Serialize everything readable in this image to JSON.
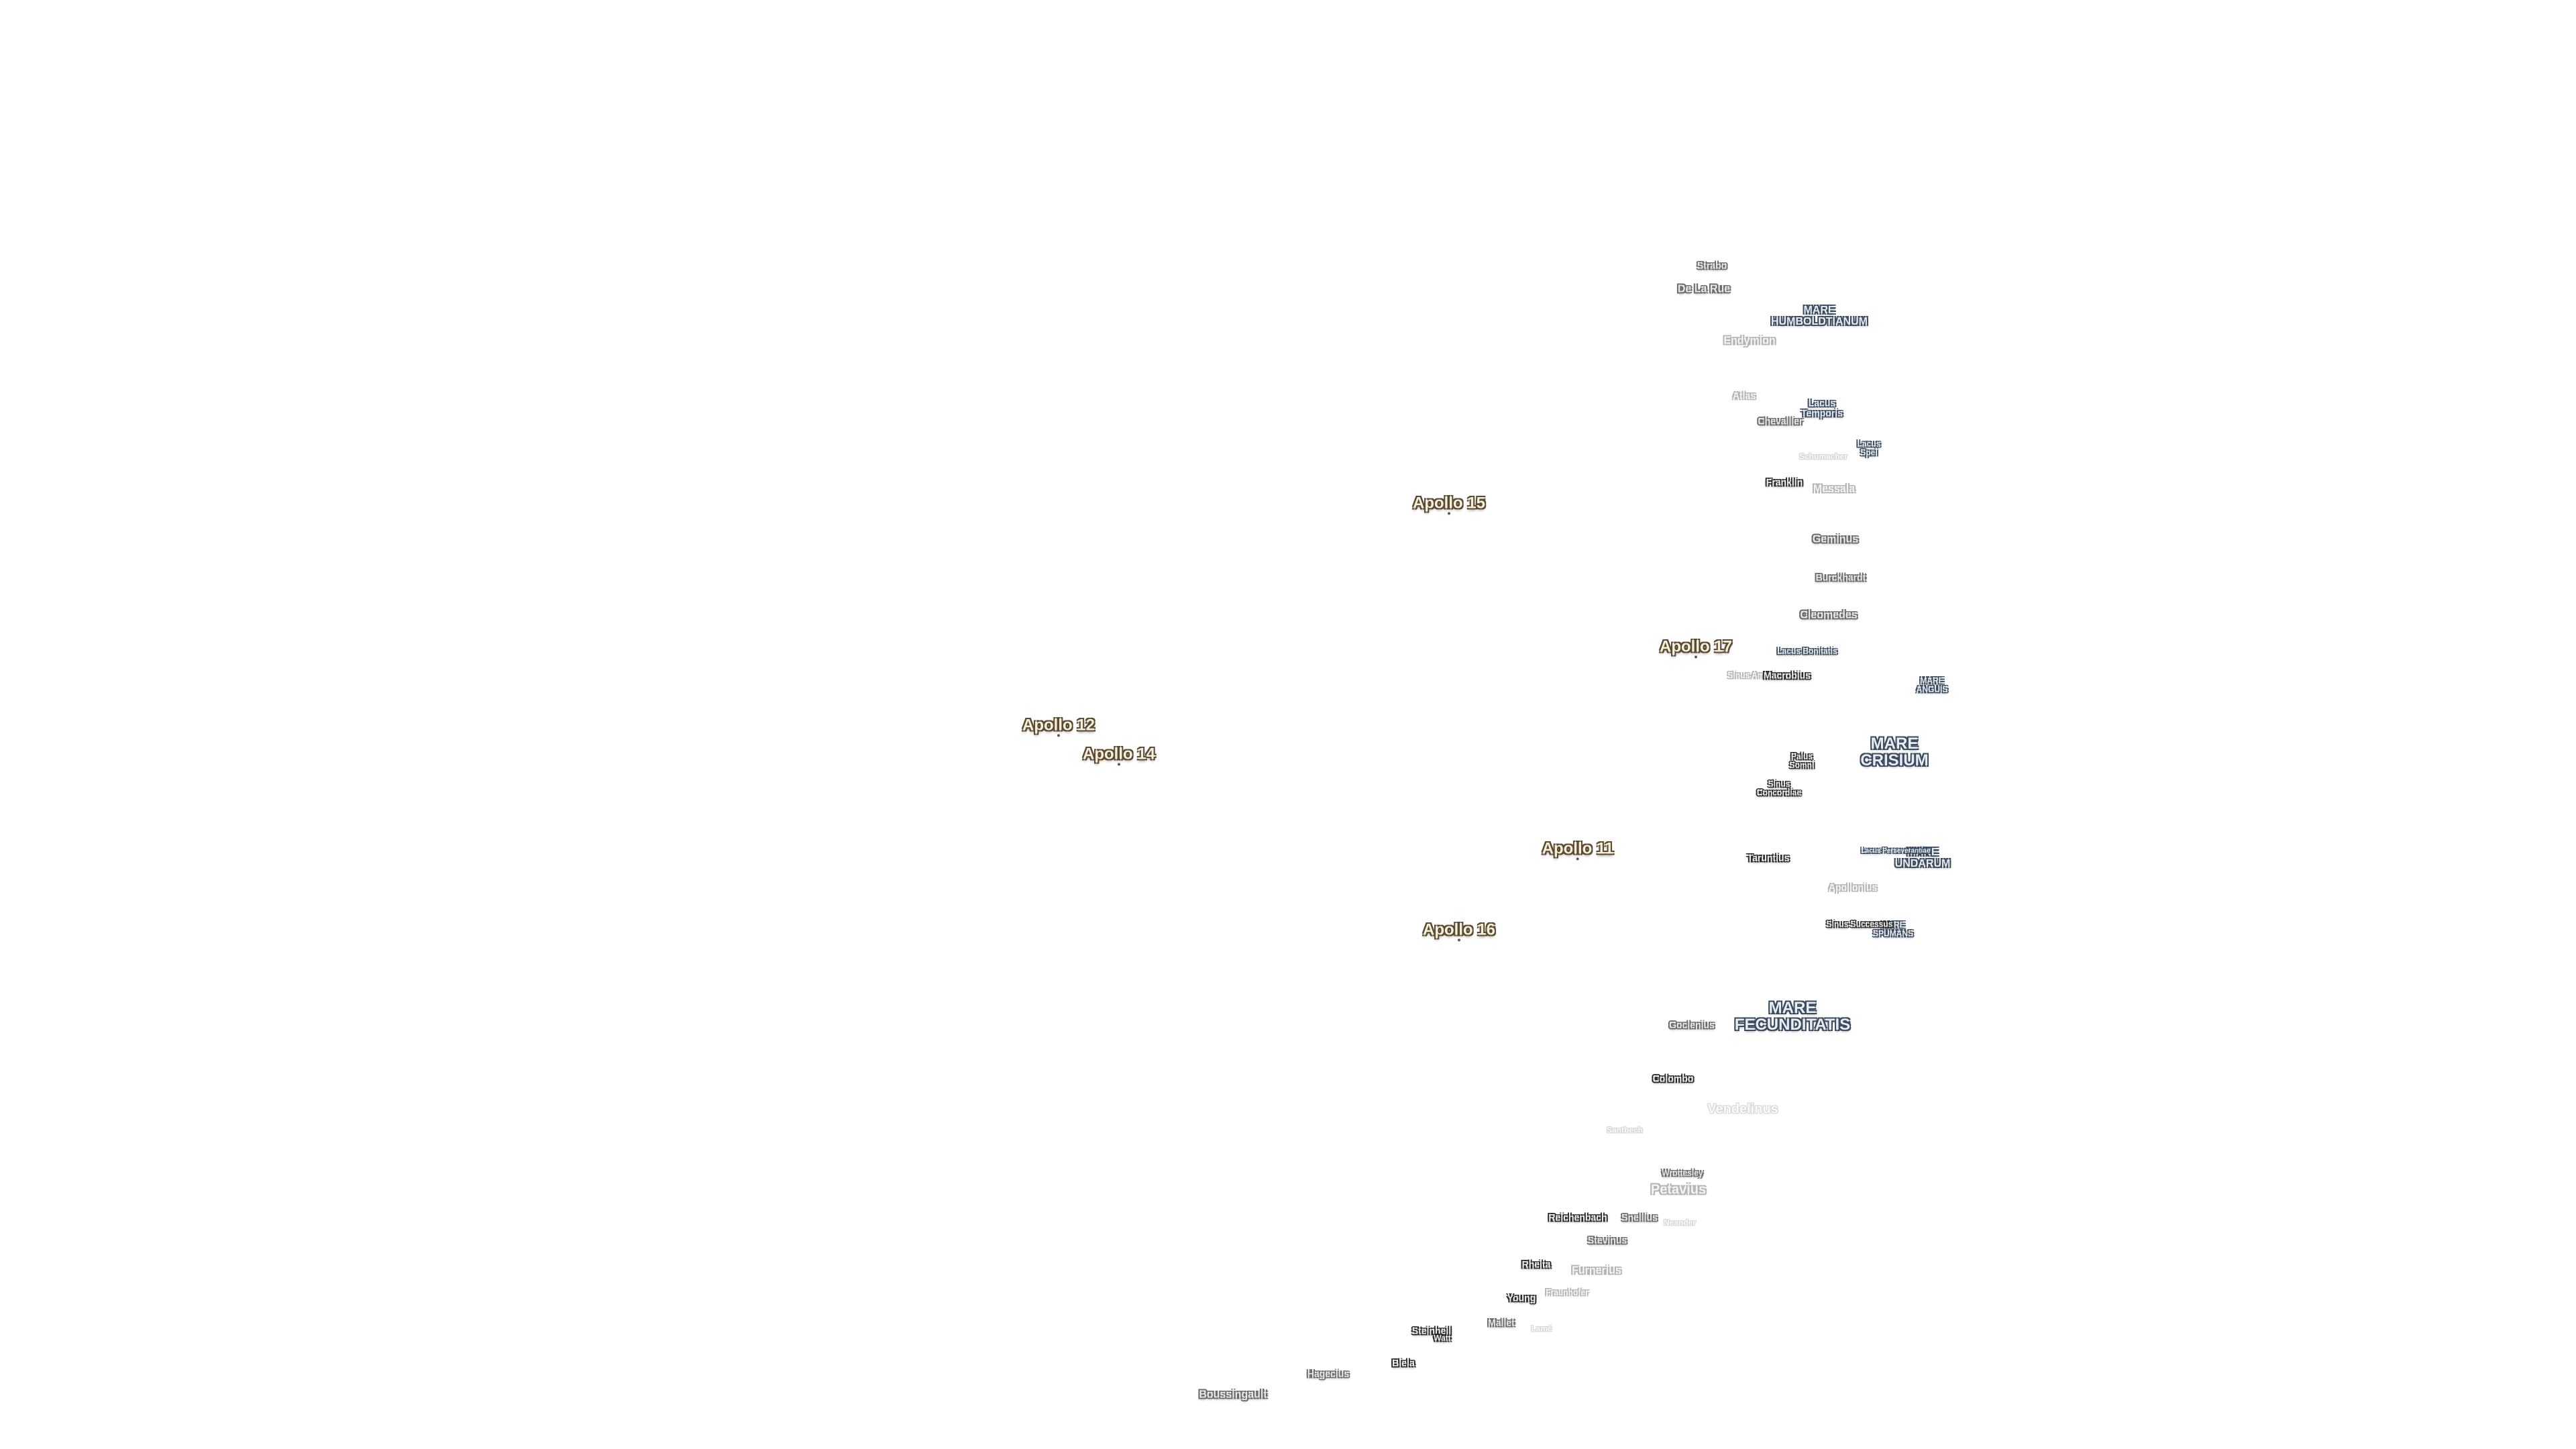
{
  "apollo_sites": [
    "Apollo 15",
    "Apollo 17",
    "Apollo 12",
    "Apollo 14",
    "Apollo 11",
    "Apollo 16"
  ],
  "craters": [
    "Strabo",
    "De La Rue",
    "Endymion",
    "Atlas",
    "Chevallier",
    "Schumacher",
    "Franklin",
    "Messala",
    "Geminus",
    "Burckhardt",
    "Cleomedes",
    "Macrobius",
    "Taruntius",
    "Apollonius",
    "Goclenius",
    "Colombo",
    "Vendelinus",
    "Santbech",
    "Wrottesley",
    "Petavius",
    "Reichenbach",
    "Snellius",
    "Stevinus",
    "Neander",
    "Rheita",
    "Furnerius",
    "Young",
    "Fraunhofer",
    "Mallet",
    "Biela",
    "Steinheil",
    "Watt",
    "Hagecius",
    "Boussingault",
    "Lamé"
  ],
  "maria": [
    "MARE HUMBOLDTIANUM",
    "MARE ANGUIS",
    "MARE CRISIUM",
    "MARE UNDARUM",
    "MARE SPUMANS",
    "MARE FECUNDITATIS"
  ],
  "lacus": [
    "Lacus Temporis",
    "Lacus Spei",
    "Lacus Bonitatis",
    "Lacus Perseverantiae"
  ],
  "sinus": [
    "Sinus Amoris",
    "Sinus Concordiae",
    "Sinus Successus"
  ],
  "palus": [
    "Palus Somni"
  ]
}
